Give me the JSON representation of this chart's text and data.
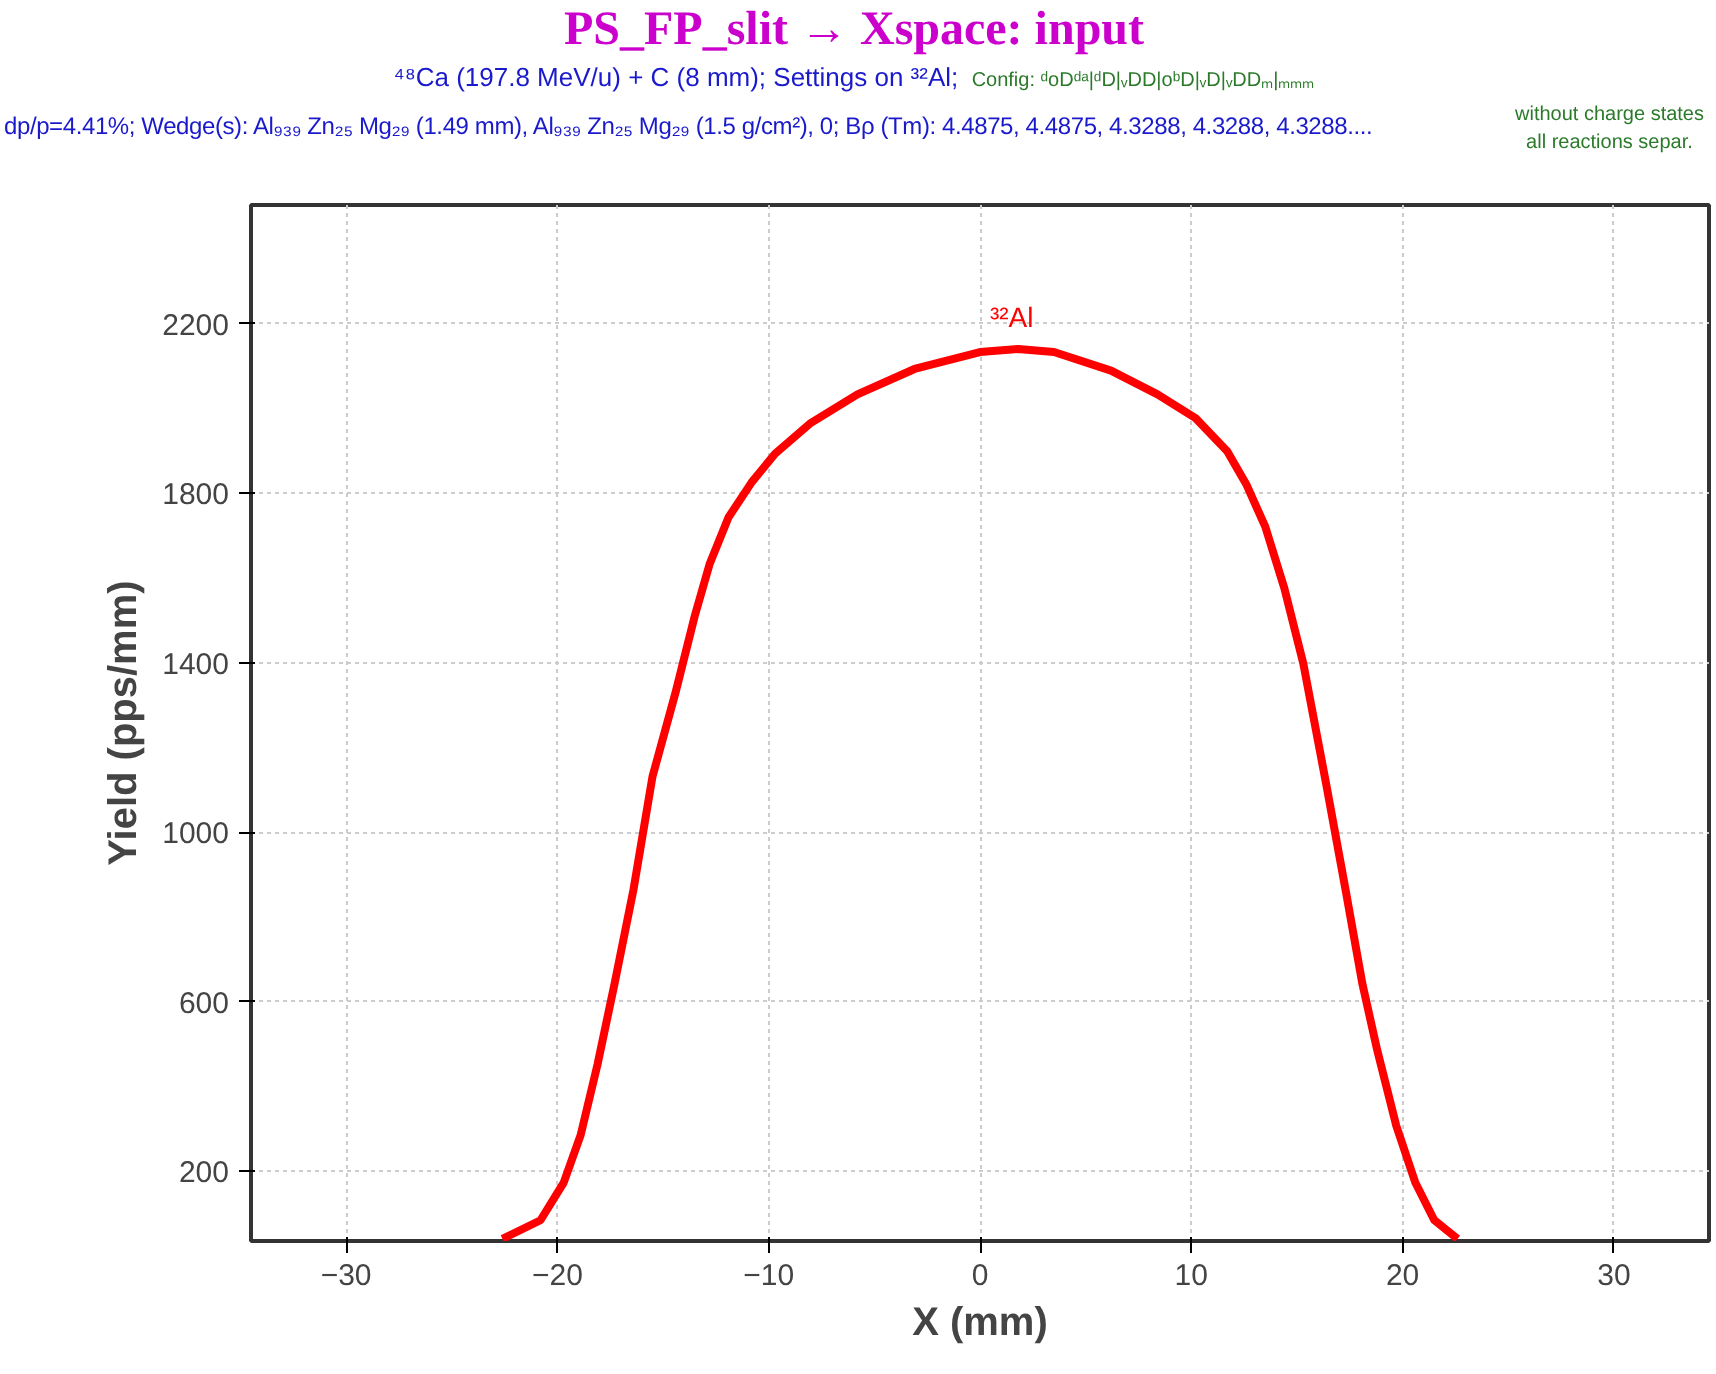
{
  "chart_data": {
    "type": "line",
    "title": "PS_FP_slit → Xspace: input",
    "subtitle": "⁴⁸Ca (197.8 MeV/u) + C (8 mm);   Settings on ³²Al;",
    "xlabel": "X (mm)",
    "ylabel": "Yield (pps/mm)",
    "annotations": [
      "Config: ᵈoDᵈᵃ|ᵈD|ᵥDD|oᵇD|ᵥD|ᵥDDₘ|ₘₘₘ",
      "dp/p=4.41%;   Wedge(s): Al₉₃₉ Zn₂₅ Mg₂₉ (1.49 mm), Al₉₃₉ Zn₂₅ Mg₂₉ (1.5 g/cm²), 0;   Bρ (Tm): 4.4875, 4.4875, 4.3288, 4.3288, 4.3288....",
      "without charge states",
      "all reactions separ.",
      {
        "text": "³²Al",
        "x": 1.5,
        "y": 2140
      }
    ],
    "series": [
      {
        "color": "#ff0000",
        "x": [
          -22.6,
          -20.8,
          -19.7,
          -18.9,
          -18.1,
          -17.3,
          -16.4,
          -15.5,
          -14.4,
          -13.5,
          -12.8,
          -11.9,
          -10.8,
          -9.7,
          -8.0,
          -5.8,
          -3.1,
          0.0,
          1.8,
          3.5,
          6.2,
          8.4,
          10.2,
          11.7,
          12.6,
          13.5,
          14.4,
          15.3,
          16.4,
          17.3,
          18.1,
          18.8,
          19.7,
          20.6,
          21.5,
          22.6
        ],
        "values": [
          40,
          84,
          173,
          285,
          452,
          641,
          864,
          1131,
          1331,
          1510,
          1632,
          1743,
          1826,
          1893,
          1966,
          2033,
          2093,
          2133,
          2140,
          2133,
          2089,
          2033,
          1977,
          1899,
          1821,
          1721,
          1576,
          1398,
          1109,
          864,
          641,
          485,
          307,
          173,
          84,
          40
        ]
      }
    ],
    "xlim": [
      -34.5,
      34.5
    ],
    "ylim": [
      35,
      2480
    ],
    "xticks": [
      -30,
      -20,
      -10,
      0,
      10,
      20,
      30
    ],
    "yticks": [
      200,
      600,
      1000,
      1400,
      1800,
      2200
    ],
    "grid": true,
    "marker": "none",
    "line_style": "solid"
  }
}
